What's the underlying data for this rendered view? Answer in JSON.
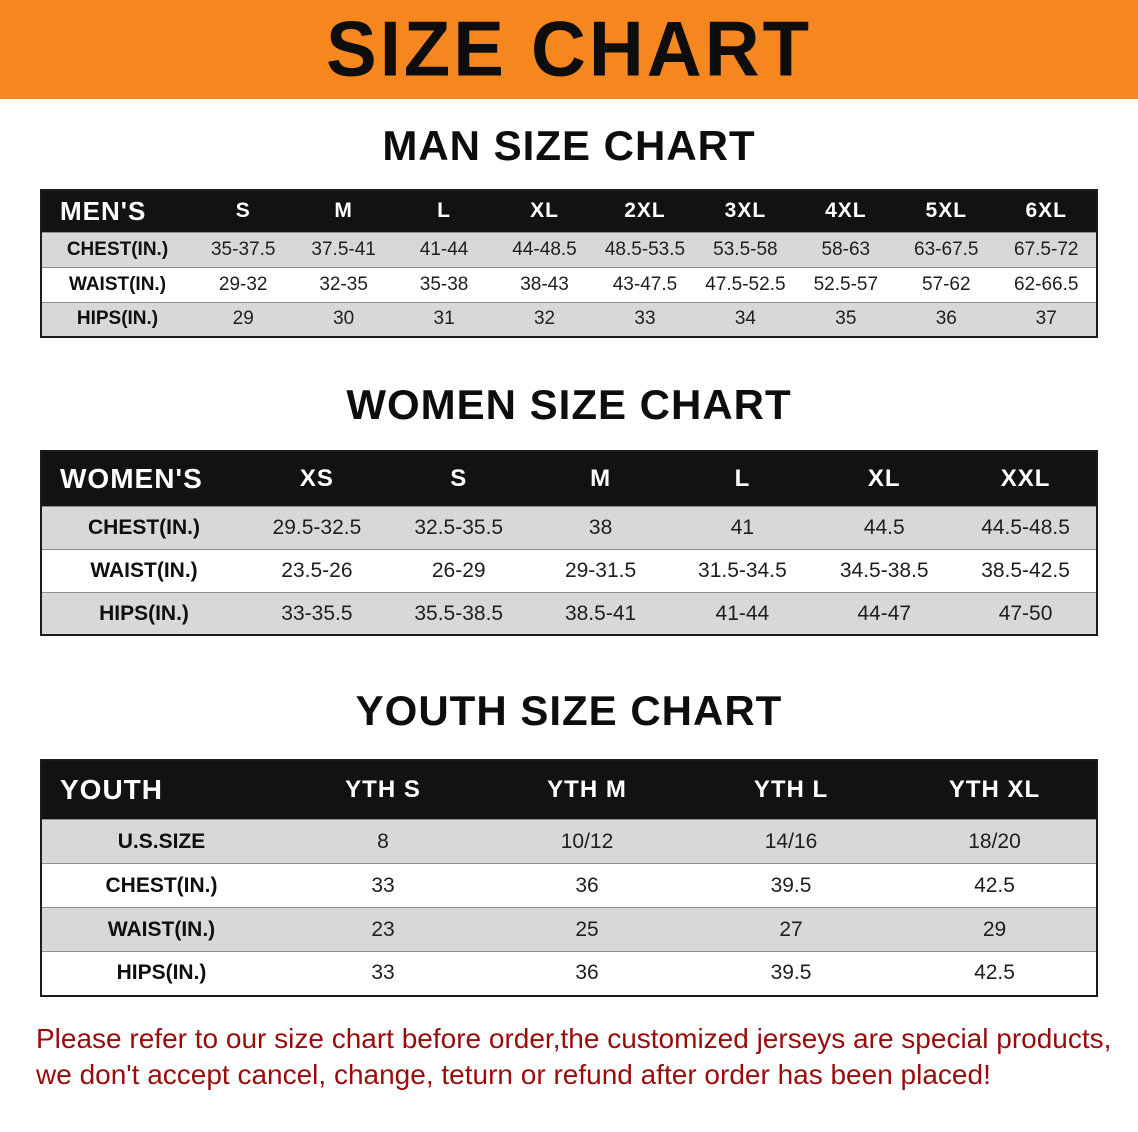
{
  "colors": {
    "banner_orange": "#f6871f",
    "header_black": "#121212",
    "stripe_gray": "#d8d8d8",
    "notice_red": "#990c0c"
  },
  "banner": {
    "title": "SIZE CHART"
  },
  "men": {
    "heading": "MAN SIZE CHART",
    "header": [
      "MEN'S",
      "S",
      "M",
      "L",
      "XL",
      "2XL",
      "3XL",
      "4XL",
      "5XL",
      "6XL"
    ],
    "rows": [
      {
        "label": "CHEST(IN.)",
        "values": [
          "35-37.5",
          "37.5-41",
          "41-44",
          "44-48.5",
          "48.5-53.5",
          "53.5-58",
          "58-63",
          "63-67.5",
          "67.5-72"
        ]
      },
      {
        "label": "WAIST(IN.)",
        "values": [
          "29-32",
          "32-35",
          "35-38",
          "38-43",
          "43-47.5",
          "47.5-52.5",
          "52.5-57",
          "57-62",
          "62-66.5"
        ]
      },
      {
        "label": "HIPS(IN.)",
        "values": [
          "29",
          "30",
          "31",
          "32",
          "33",
          "34",
          "35",
          "36",
          "37"
        ]
      }
    ]
  },
  "women": {
    "heading": "WOMEN SIZE CHART",
    "header": [
      "WOMEN'S",
      "XS",
      "S",
      "M",
      "L",
      "XL",
      "XXL"
    ],
    "rows": [
      {
        "label": "CHEST(IN.)",
        "values": [
          "29.5-32.5",
          "32.5-35.5",
          "38",
          "41",
          "44.5",
          "44.5-48.5"
        ]
      },
      {
        "label": "WAIST(IN.)",
        "values": [
          "23.5-26",
          "26-29",
          "29-31.5",
          "31.5-34.5",
          "34.5-38.5",
          "38.5-42.5"
        ]
      },
      {
        "label": "HIPS(IN.)",
        "values": [
          "33-35.5",
          "35.5-38.5",
          "38.5-41",
          "41-44",
          "44-47",
          "47-50"
        ]
      }
    ]
  },
  "youth": {
    "heading": "YOUTH SIZE CHART",
    "header": [
      "YOUTH",
      "YTH S",
      "YTH M",
      "YTH L",
      "YTH XL"
    ],
    "rows": [
      {
        "label": "U.S.SIZE",
        "values": [
          "8",
          "10/12",
          "14/16",
          "18/20"
        ]
      },
      {
        "label": "CHEST(IN.)",
        "values": [
          "33",
          "36",
          "39.5",
          "42.5"
        ]
      },
      {
        "label": "WAIST(IN.)",
        "values": [
          "23",
          "25",
          "27",
          "29"
        ]
      },
      {
        "label": "HIPS(IN.)",
        "values": [
          "33",
          "36",
          "39.5",
          "42.5"
        ]
      }
    ]
  },
  "footer": {
    "line1": "Please refer to our size chart before order,the customized jerseys are special products,",
    "line2": "we don't accept cancel, change, teturn or refund after order has been placed!"
  }
}
